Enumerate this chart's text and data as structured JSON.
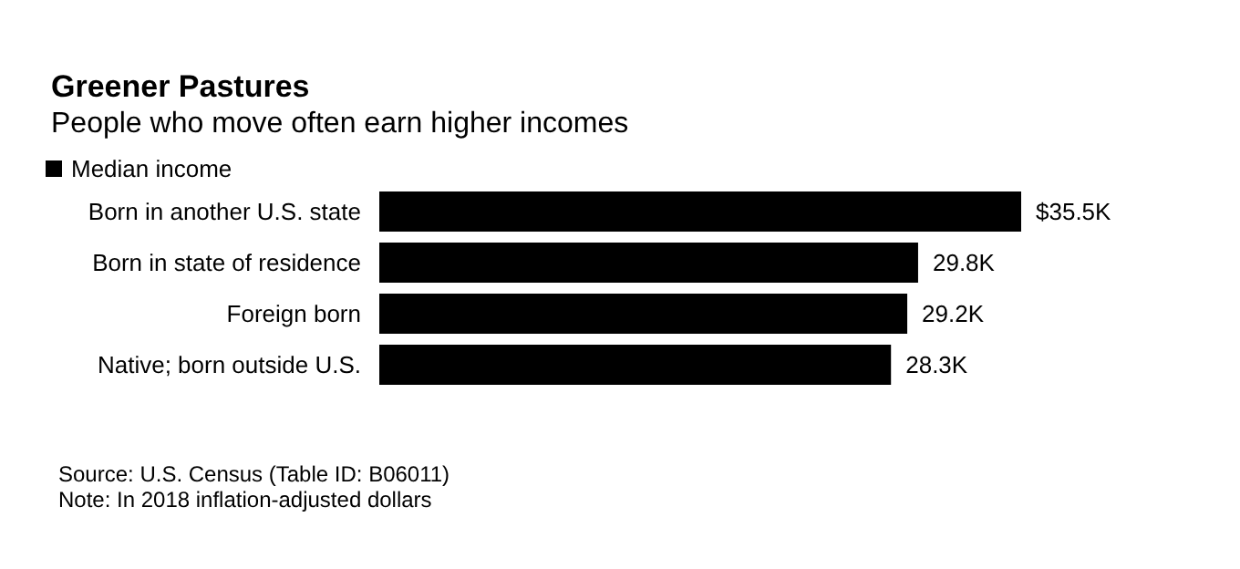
{
  "chart_data": {
    "type": "bar",
    "orientation": "horizontal",
    "title": "Greener Pastures",
    "subtitle": "People who move often earn higher incomes",
    "categories": [
      "Born in another U.S. state",
      "Born in state of residence",
      "Foreign born",
      "Native; born outside U.S."
    ],
    "series": [
      {
        "name": "Median income",
        "color": "#000000",
        "values": [
          35.5,
          29.8,
          29.2,
          28.3
        ],
        "value_labels": [
          "$35.5K",
          "29.8K",
          "29.2K",
          "28.3K"
        ]
      }
    ],
    "xlim": [
      0,
      35.5
    ],
    "tick_labels": "y",
    "legend": "top left",
    "grid": false,
    "annotations": [
      "Source: U.S. Census (Table ID: B06011)",
      "Note: In 2018 inflation-adjusted dollars"
    ]
  }
}
